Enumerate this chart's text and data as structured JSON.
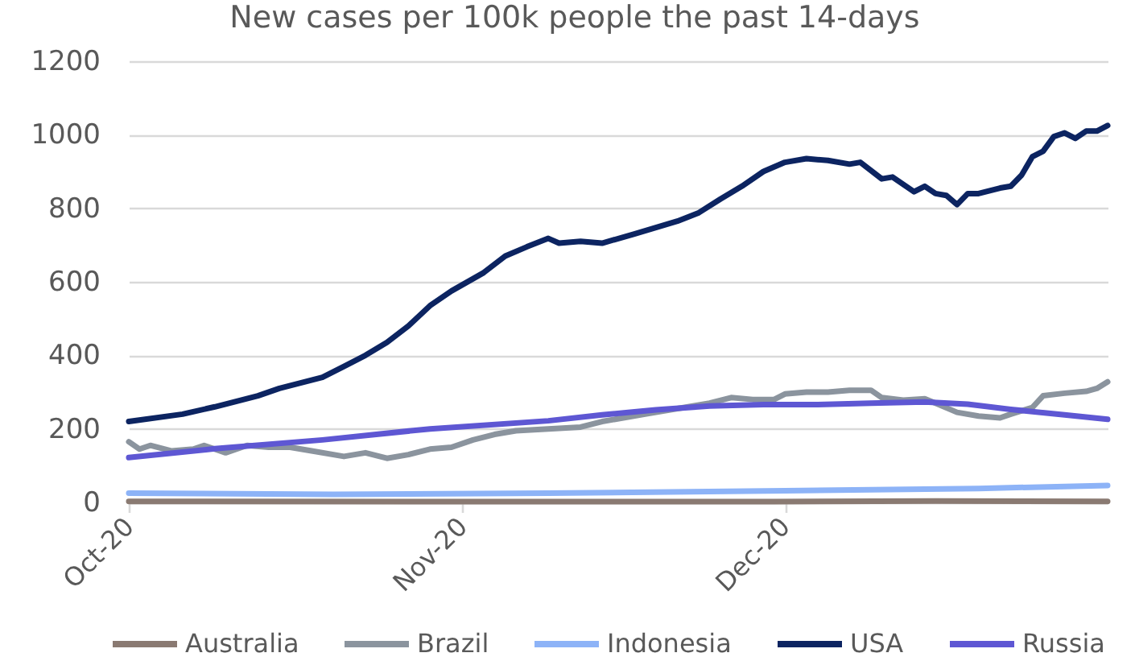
{
  "chart_data": {
    "type": "line",
    "title": "New cases per 100k people the past 14-days",
    "series": [
      {
        "name": "Australia",
        "color": "#8a7a72",
        "x": [
          "2020-10-01",
          "2020-10-31",
          "2020-11-30",
          "2020-12-15",
          "2020-12-31"
        ],
        "values": [
          3,
          2,
          2,
          4,
          3
        ]
      },
      {
        "name": "Brazil",
        "color": "#8b949e",
        "x": [
          "2020-10-01",
          "2020-10-02",
          "2020-10-03",
          "2020-10-05",
          "2020-10-07",
          "2020-10-08",
          "2020-10-10",
          "2020-10-12",
          "2020-10-14",
          "2020-10-16",
          "2020-10-18",
          "2020-10-21",
          "2020-10-22",
          "2020-10-23",
          "2020-10-25",
          "2020-10-27",
          "2020-10-29",
          "2020-10-31",
          "2020-11-02",
          "2020-11-04",
          "2020-11-06",
          "2020-11-09",
          "2020-11-12",
          "2020-11-14",
          "2020-11-18",
          "2020-11-21",
          "2020-11-24",
          "2020-11-26",
          "2020-11-28",
          "2020-11-30",
          "2020-12-01",
          "2020-12-03",
          "2020-12-05",
          "2020-12-07",
          "2020-12-09",
          "2020-12-10",
          "2020-12-12",
          "2020-12-14",
          "2020-12-15",
          "2020-12-17",
          "2020-12-19",
          "2020-12-21",
          "2020-12-22",
          "2020-12-24",
          "2020-12-25",
          "2020-12-27",
          "2020-12-29",
          "2020-12-30",
          "2020-12-31"
        ],
        "values": [
          165,
          145,
          155,
          140,
          145,
          155,
          135,
          155,
          150,
          150,
          140,
          125,
          130,
          135,
          120,
          130,
          145,
          150,
          170,
          185,
          195,
          200,
          205,
          220,
          240,
          255,
          270,
          285,
          280,
          280,
          295,
          300,
          300,
          305,
          305,
          285,
          278,
          282,
          270,
          245,
          235,
          230,
          240,
          258,
          290,
          297,
          302,
          310,
          328
        ]
      },
      {
        "name": "Indonesia",
        "color": "#8db3f7",
        "x": [
          "2020-10-01",
          "2020-10-20",
          "2020-11-09",
          "2020-12-01",
          "2020-12-19",
          "2020-12-31"
        ],
        "values": [
          25,
          22,
          25,
          32,
          38,
          46
        ]
      },
      {
        "name": "USA",
        "color": "#0c2461",
        "x": [
          "2020-10-01",
          "2020-10-06",
          "2020-10-09",
          "2020-10-13",
          "2020-10-15",
          "2020-10-19",
          "2020-10-21",
          "2020-10-23",
          "2020-10-25",
          "2020-10-27",
          "2020-10-29",
          "2020-10-31",
          "2020-11-03",
          "2020-11-05",
          "2020-11-07",
          "2020-11-09",
          "2020-11-10",
          "2020-11-12",
          "2020-11-14",
          "2020-11-17",
          "2020-11-21",
          "2020-11-23",
          "2020-11-25",
          "2020-11-27",
          "2020-11-29",
          "2020-12-01",
          "2020-12-03",
          "2020-12-05",
          "2020-12-07",
          "2020-12-08",
          "2020-12-10",
          "2020-12-11",
          "2020-12-13",
          "2020-12-14",
          "2020-12-15",
          "2020-12-16",
          "2020-12-17",
          "2020-12-18",
          "2020-12-19",
          "2020-12-21",
          "2020-12-22",
          "2020-12-23",
          "2020-12-24",
          "2020-12-25",
          "2020-12-26",
          "2020-12-27",
          "2020-12-28",
          "2020-12-29",
          "2020-12-30",
          "2020-12-31"
        ],
        "values": [
          220,
          240,
          260,
          290,
          310,
          340,
          370,
          400,
          435,
          480,
          535,
          575,
          625,
          670,
          695,
          718,
          705,
          710,
          705,
          730,
          765,
          788,
          825,
          860,
          900,
          925,
          935,
          930,
          920,
          925,
          880,
          885,
          845,
          860,
          840,
          835,
          810,
          840,
          840,
          855,
          860,
          890,
          940,
          955,
          995,
          1005,
          990,
          1010,
          1010,
          1025
        ]
      },
      {
        "name": "Russia",
        "color": "#5e57d3",
        "x": [
          "2020-10-01",
          "2020-10-09",
          "2020-10-19",
          "2020-10-29",
          "2020-11-09",
          "2020-11-14",
          "2020-11-19",
          "2020-11-24",
          "2020-11-29",
          "2020-12-04",
          "2020-12-09",
          "2020-12-14",
          "2020-12-18",
          "2020-12-22",
          "2020-12-27",
          "2020-12-31"
        ],
        "values": [
          122,
          146,
          170,
          200,
          222,
          238,
          252,
          262,
          266,
          266,
          270,
          273,
          267,
          253,
          238,
          226
        ]
      }
    ],
    "xlim": [
      "2020-10-01",
      "2020-12-31"
    ],
    "xticks": [
      {
        "value": "2020-10-01",
        "label": "Oct-20"
      },
      {
        "value": "2020-11-01",
        "label": "Nov-20"
      },
      {
        "value": "2020-12-01",
        "label": "Dec-20"
      }
    ],
    "ylim": [
      0,
      1200
    ],
    "yticks": [
      0,
      200,
      400,
      600,
      800,
      1000,
      1200
    ],
    "grid": "y",
    "legend": "bottom"
  }
}
